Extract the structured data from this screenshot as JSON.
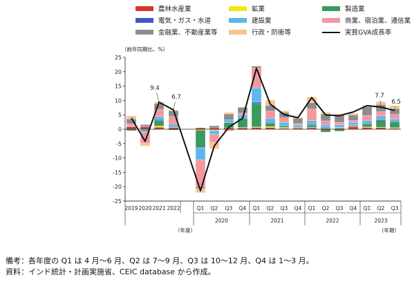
{
  "chart_data": {
    "type": "bar",
    "stacked": true,
    "ylabel_unit": "（前年同期比、%）",
    "ylim": [
      -25,
      25
    ],
    "yticks": [
      25,
      20,
      15,
      10,
      5,
      0,
      -5,
      -10,
      -15,
      -20,
      -25
    ],
    "x_axis_unit_annual": "（年度）",
    "x_axis_unit_quarterly": "（年期）",
    "categories": [
      "2019",
      "2020",
      "2021",
      "2022",
      "Q1",
      "Q2",
      "Q3",
      "Q4",
      "Q1",
      "Q2",
      "Q3",
      "Q4",
      "Q1",
      "Q2",
      "Q3",
      "Q4",
      "Q1",
      "Q2",
      "Q3"
    ],
    "groups": [
      {
        "label": "2020",
        "span": [
          4,
          7
        ]
      },
      {
        "label": "2021",
        "span": [
          8,
          11
        ]
      },
      {
        "label": "2022",
        "span": [
          12,
          15
        ]
      },
      {
        "label": "2023",
        "span": [
          16,
          18
        ]
      }
    ],
    "series": [
      {
        "name": "農林水産業",
        "color": "#d9372b",
        "values": [
          0.9,
          0.9,
          0.7,
          0.6,
          0.5,
          0.5,
          0.5,
          0.5,
          0.6,
          0.6,
          0.3,
          0.4,
          0.5,
          0.4,
          0.4,
          0.9,
          0.6,
          0.6,
          0.3
        ]
      },
      {
        "name": "鉱業",
        "color": "#f2e519",
        "values": [
          0.0,
          -0.2,
          0.4,
          0.2,
          -0.3,
          -0.3,
          -0.1,
          0.1,
          0.2,
          0.3,
          0.3,
          0.2,
          0.1,
          0.1,
          0.1,
          0.1,
          0.2,
          0.1,
          0.2
        ]
      },
      {
        "name": "製造業",
        "color": "#3a9a5c",
        "values": [
          -0.5,
          -0.4,
          2.0,
          -0.3,
          -6.0,
          -0.2,
          1.8,
          3.2,
          8.1,
          1.2,
          0.6,
          0.2,
          0.8,
          -1.0,
          -0.7,
          0.3,
          1.0,
          2.5,
          2.0
        ]
      },
      {
        "name": "電気・ガス・水道",
        "color": "#3e59c8",
        "values": [
          0.1,
          0.1,
          0.3,
          0.3,
          -0.3,
          -0.2,
          0.1,
          0.2,
          0.5,
          0.3,
          0.2,
          0.2,
          0.3,
          0.3,
          0.2,
          0.2,
          0.3,
          0.3,
          0.3
        ]
      },
      {
        "name": "建設業",
        "color": "#5bb8ee",
        "values": [
          0.1,
          -0.5,
          1.0,
          0.8,
          -4.0,
          -1.0,
          0.9,
          1.0,
          5.0,
          1.4,
          1.0,
          0.5,
          1.3,
          0.8,
          0.8,
          0.9,
          1.0,
          1.1,
          0.8
        ]
      },
      {
        "name": "商業、宿泊業、通信業",
        "color": "#f4989d",
        "values": [
          0.8,
          -3.9,
          2.5,
          2.5,
          -9.3,
          -3.0,
          -0.5,
          0.6,
          6.9,
          2.5,
          1.5,
          0.5,
          4.0,
          1.3,
          0.9,
          0.6,
          1.7,
          1.5,
          1.5
        ]
      },
      {
        "name": "金融業、不動産業等",
        "color": "#8c8c8c",
        "values": [
          1.7,
          0.6,
          2.0,
          2.0,
          -0.7,
          0.7,
          2.0,
          2.0,
          0.6,
          2.0,
          2.0,
          1.8,
          2.2,
          2.4,
          2.5,
          2.0,
          3.0,
          2.5,
          2.1
        ]
      },
      {
        "name": "行政・防衛等",
        "color": "#f7c48f",
        "values": [
          1.0,
          -0.8,
          0.6,
          0.4,
          -1.5,
          -2.1,
          0.5,
          -0.3,
          0.2,
          1.8,
          0.5,
          0.4,
          2.0,
          0.6,
          0.5,
          0.6,
          0.6,
          1.0,
          1.0
        ]
      }
    ],
    "line": {
      "name": "実質GVA成長率",
      "color": "#111111",
      "values": [
        3.9,
        -4.2,
        9.4,
        6.7,
        -21.4,
        -5.8,
        0.7,
        3.8,
        21.2,
        8.7,
        5.1,
        4.0,
        11.0,
        5.0,
        4.7,
        6.0,
        8.2,
        7.7,
        6.5
      ]
    },
    "annotations": [
      {
        "index": 2,
        "text": "9.4"
      },
      {
        "index": 3,
        "text": "6.7"
      },
      {
        "index": 17,
        "text": "7.7"
      },
      {
        "index": 18,
        "text": "6.5"
      }
    ],
    "legend_position": "top",
    "grid": false
  },
  "notes": [
    "備考：各年度の Q1 は 4 月～6 月、Q2 は 7～9 月、Q3 は 10～12 月、Q4 は 1～3 月。",
    "資料：インド統計・計画実施省、CEIC database から作成。"
  ]
}
